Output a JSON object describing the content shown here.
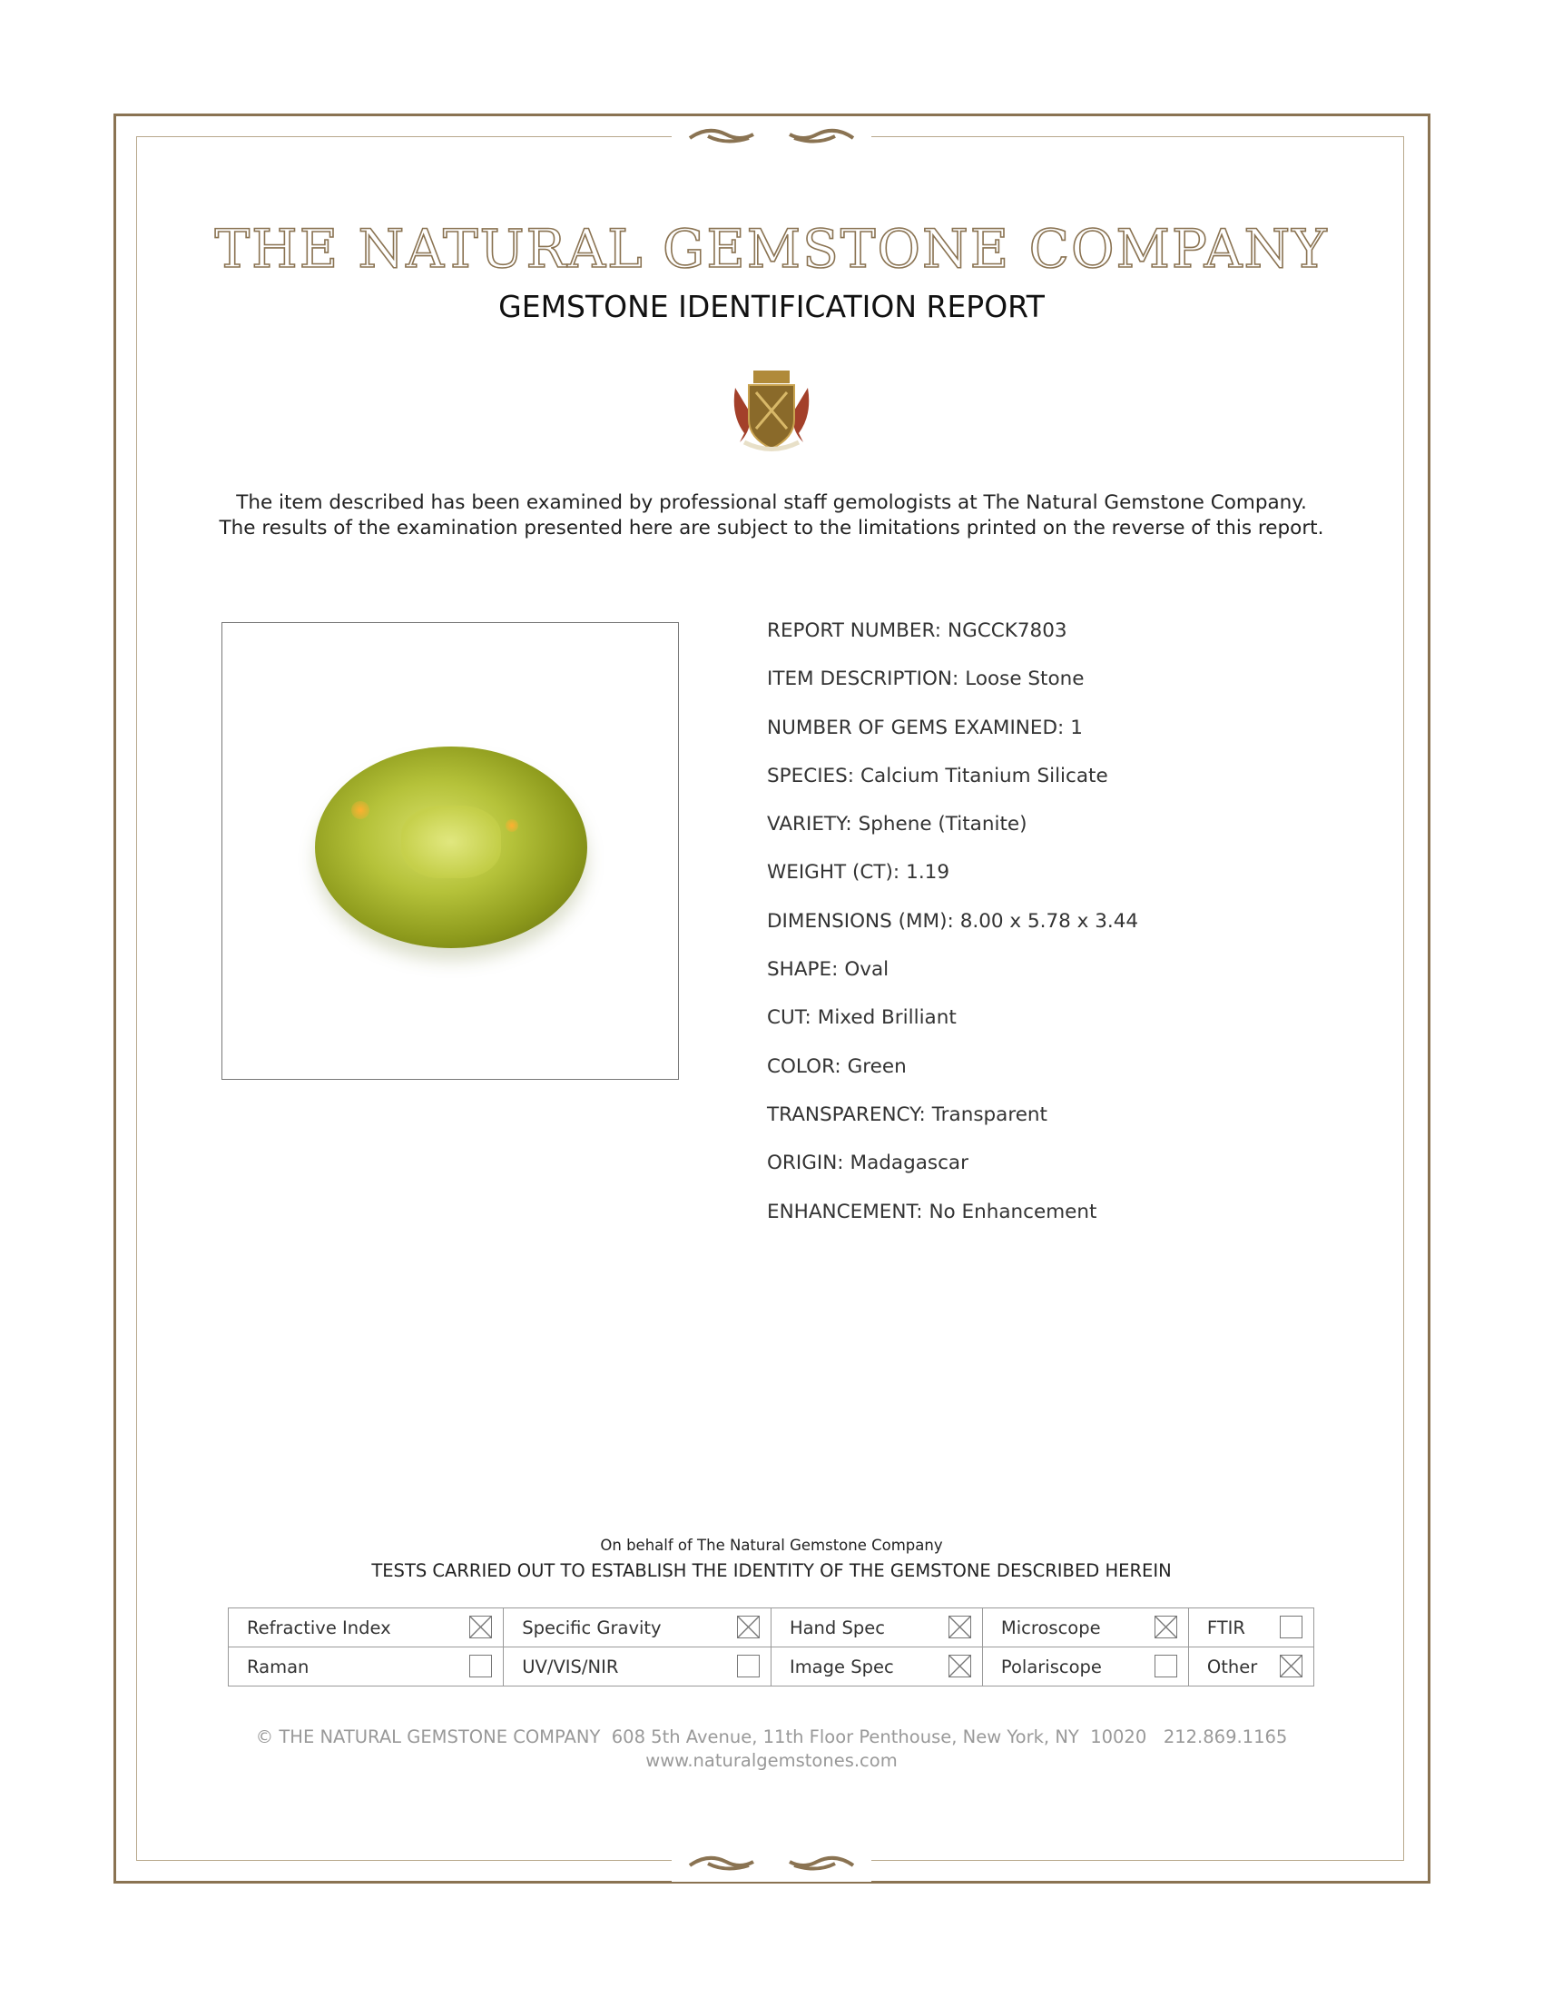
{
  "header": {
    "company_name": "THE NATURAL GEMSTONE COMPANY",
    "report_title": "GEMSTONE IDENTIFICATION REPORT",
    "logo": "crest-logo"
  },
  "intro": {
    "line1": "The item described has been examined by professional staff gemologists at The Natural Gemstone Company.",
    "line2": "The results of the examination presented here are subject to the limitations printed on the reverse of this report."
  },
  "details": [
    {
      "label": "REPORT NUMBER:",
      "value": "NGCCK7803"
    },
    {
      "label": "ITEM DESCRIPTION:",
      "value": "Loose Stone"
    },
    {
      "label": "NUMBER OF GEMS EXAMINED:",
      "value": "1"
    },
    {
      "label": "SPECIES:",
      "value": "Calcium Titanium Silicate"
    },
    {
      "label": "VARIETY:",
      "value": "Sphene (Titanite)"
    },
    {
      "label": "WEIGHT (CT):",
      "value": "1.19"
    },
    {
      "label": "DIMENSIONS (MM):",
      "value": "8.00 x 5.78 x 3.44"
    },
    {
      "label": "SHAPE:",
      "value": "Oval"
    },
    {
      "label": "CUT:",
      "value": "Mixed Brilliant"
    },
    {
      "label": "COLOR:",
      "value": "Green"
    },
    {
      "label": "TRANSPARENCY:",
      "value": "Transparent"
    },
    {
      "label": "ORIGIN:",
      "value": "Madagascar"
    },
    {
      "label": "ENHANCEMENT:",
      "value": "No Enhancement"
    }
  ],
  "tests": {
    "behalf": "On behalf of The Natural Gemstone Company",
    "heading": "TESTS CARRIED OUT TO ESTABLISH THE IDENTITY OF THE GEMSTONE DESCRIBED HEREIN",
    "rows": [
      [
        {
          "label": "Refractive Index",
          "checked": true
        },
        {
          "label": "Specific Gravity",
          "checked": true
        },
        {
          "label": "Hand Spec",
          "checked": true
        },
        {
          "label": "Microscope",
          "checked": true
        },
        {
          "label": "FTIR",
          "checked": false
        }
      ],
      [
        {
          "label": "Raman",
          "checked": false
        },
        {
          "label": "UV/VIS/NIR",
          "checked": false
        },
        {
          "label": "Image Spec",
          "checked": true
        },
        {
          "label": "Polariscope",
          "checked": false
        },
        {
          "label": "Other",
          "checked": true
        }
      ]
    ]
  },
  "footer": {
    "address": "© THE NATURAL GEMSTONE COMPANY  608 5th Avenue, 11th Floor Penthouse, New York, NY  10020   212.869.1165",
    "website": "www.naturalgemstones.com"
  },
  "colors": {
    "border": "#8a7352",
    "gem": "#b5c23a"
  }
}
